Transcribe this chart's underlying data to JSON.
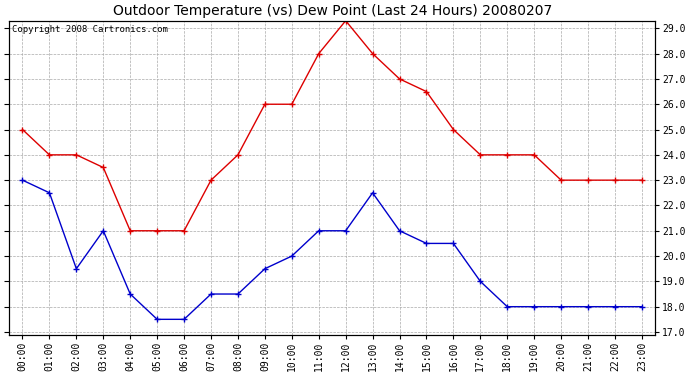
{
  "title": "Outdoor Temperature (vs) Dew Point (Last 24 Hours) 20080207",
  "copyright_text": "Copyright 2008 Cartronics.com",
  "hours": [
    "00:00",
    "01:00",
    "02:00",
    "03:00",
    "04:00",
    "05:00",
    "06:00",
    "07:00",
    "08:00",
    "09:00",
    "10:00",
    "11:00",
    "12:00",
    "13:00",
    "14:00",
    "15:00",
    "16:00",
    "17:00",
    "18:00",
    "19:00",
    "20:00",
    "21:00",
    "22:00",
    "23:00"
  ],
  "temp_red": [
    25.0,
    24.0,
    24.0,
    23.5,
    21.0,
    21.0,
    21.0,
    23.0,
    24.0,
    26.0,
    26.0,
    28.0,
    29.3,
    28.0,
    27.0,
    26.5,
    25.0,
    24.0,
    24.0,
    24.0,
    23.0,
    23.0,
    23.0,
    23.0
  ],
  "temp_blue": [
    23.0,
    22.5,
    19.5,
    21.0,
    18.5,
    17.5,
    17.5,
    18.5,
    18.5,
    19.5,
    20.0,
    21.0,
    21.0,
    22.5,
    21.0,
    20.5,
    20.5,
    19.0,
    18.0,
    18.0,
    18.0,
    18.0,
    18.0,
    18.0
  ],
  "ylim_min": 17.0,
  "ylim_max": 29.0,
  "yticks": [
    17.0,
    18.0,
    19.0,
    20.0,
    21.0,
    22.0,
    23.0,
    24.0,
    25.0,
    26.0,
    27.0,
    28.0,
    29.0
  ],
  "red_color": "#dd0000",
  "blue_color": "#0000cc",
  "bg_color": "#ffffff",
  "plot_bg_color": "#ffffff",
  "grid_color": "#aaaaaa",
  "title_fontsize": 10,
  "copyright_fontsize": 6.5,
  "tick_fontsize": 7,
  "marker": "+"
}
